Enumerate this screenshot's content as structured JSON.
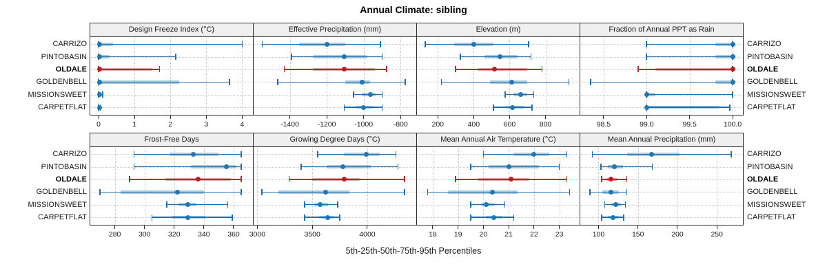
{
  "title": "Annual Climate: sibling",
  "caption": "5th-25th-50th-75th-95th Percentiles",
  "sites": [
    {
      "name": "CARRIZO",
      "highlight": false
    },
    {
      "name": "PINTOBASIN",
      "highlight": false
    },
    {
      "name": "OLDALE",
      "highlight": true
    },
    {
      "name": "GOLDENBELL",
      "highlight": false
    },
    {
      "name": "MISSIONSWEET",
      "highlight": false
    },
    {
      "name": "CARPETFLAT",
      "highlight": false
    }
  ],
  "colors": {
    "normal_dot": "#1F77B4",
    "normal_line": "#1C6FAE",
    "normal_band": "rgba(31,119,180,0.38)",
    "highlight_dot": "#B22222",
    "highlight_line": "#AE2F2F",
    "highlight_band": "rgba(178,34,34,0.38)",
    "grid": "#C9C9C9",
    "border": "#2E2E2E",
    "strip_bg": "#EFEFEF"
  },
  "chart_data": {
    "type": "scatter",
    "variant": "percentile-range-dotplot",
    "title": "Annual Climate: sibling",
    "xlabel": "5th-25th-50th-75th-95th Percentiles",
    "grid": "dotted at axis ticks and row centers",
    "legend": "none",
    "percentiles": [
      "5th",
      "25th",
      "50th",
      "75th",
      "95th"
    ],
    "sites": [
      "CARRIZO",
      "PINTOBASIN",
      "OLDALE",
      "GOLDENBELL",
      "MISSIONSWEET",
      "CARPETFLAT"
    ],
    "highlighted_site": "OLDALE",
    "panels": [
      {
        "title": "Design Freeze Index (°C)",
        "grid_row": 0,
        "grid_col": 0,
        "xlim": [
          -0.25,
          4.3
        ],
        "tick_values": [
          0,
          1,
          2,
          3,
          4
        ],
        "tick_labels": [
          "0",
          "1",
          "2",
          "3",
          "4"
        ],
        "values": [
          [
            0,
            0,
            0.02,
            0.4,
            4.0
          ],
          [
            0,
            0,
            0.02,
            0.3,
            2.15
          ],
          [
            0,
            0,
            0.02,
            1.5,
            1.7
          ],
          [
            0,
            0,
            0.02,
            2.25,
            3.65
          ],
          [
            0,
            0,
            0.03,
            0.06,
            0.11
          ],
          [
            0,
            0,
            0.02,
            0.03,
            0.05
          ]
        ]
      },
      {
        "title": "Effective Precipitation (mm)",
        "grid_row": 0,
        "grid_col": 1,
        "xlim": [
          -1600,
          -715
        ],
        "tick_values": [
          -1400,
          -1200,
          -1000,
          -800
        ],
        "tick_labels": [
          "-1400",
          "-1200",
          "-1000",
          "-800"
        ],
        "values": [
          [
            -1550,
            -1350,
            -1200,
            -1100,
            -910
          ],
          [
            -1390,
            -1270,
            -1105,
            -985,
            -900
          ],
          [
            -1430,
            -1275,
            -1105,
            -940,
            -875
          ],
          [
            -1465,
            -1100,
            -1010,
            -965,
            -775
          ],
          [
            -1055,
            -1010,
            -965,
            -935,
            -900
          ],
          [
            -1105,
            -1045,
            -1000,
            -945,
            -900
          ]
        ]
      },
      {
        "title": "Elevation (m)",
        "grid_row": 0,
        "grid_col": 2,
        "xlim": [
          80,
          990
        ],
        "tick_values": [
          200,
          400,
          600,
          800
        ],
        "tick_labels": [
          "200",
          "400",
          "600",
          "800"
        ],
        "values": [
          [
            130,
            290,
            400,
            510,
            705
          ],
          [
            325,
            460,
            545,
            645,
            720
          ],
          [
            300,
            420,
            515,
            700,
            780
          ],
          [
            220,
            490,
            610,
            700,
            930
          ],
          [
            575,
            620,
            660,
            700,
            735
          ],
          [
            510,
            580,
            615,
            680,
            725
          ]
        ]
      },
      {
        "title": "Fraction of Annual PPT as Rain",
        "grid_row": 0,
        "grid_col": 3,
        "xlim": [
          98.22,
          100.12
        ],
        "tick_values": [
          98.5,
          99.0,
          99.5,
          100.0
        ],
        "tick_labels": [
          "98.5",
          "99.0",
          "99.5",
          "100.0"
        ],
        "values": [
          [
            99.0,
            99.8,
            100.0,
            100.0,
            100.0
          ],
          [
            99.0,
            99.8,
            100.0,
            100.0,
            100.0
          ],
          [
            98.9,
            99.1,
            100.0,
            100.0,
            100.0
          ],
          [
            98.35,
            99.8,
            100.0,
            100.0,
            100.0
          ],
          [
            99.0,
            99.0,
            99.0,
            99.1,
            100.0
          ],
          [
            99.0,
            99.0,
            99.0,
            99.85,
            99.97
          ]
        ]
      },
      {
        "title": "Frost-Free Days",
        "grid_row": 1,
        "grid_col": 0,
        "xlim": [
          263,
          373
        ],
        "tick_values": [
          280,
          300,
          320,
          340,
          360
        ],
        "tick_labels": [
          "280",
          "300",
          "320",
          "340",
          "360"
        ],
        "values": [
          [
            293,
            317,
            333,
            350,
            365
          ],
          [
            293,
            331,
            355,
            362,
            365
          ],
          [
            290,
            314,
            336,
            358,
            365
          ],
          [
            270,
            284,
            322,
            340,
            365
          ],
          [
            315,
            323,
            329,
            335,
            356
          ],
          [
            305,
            318,
            329,
            341,
            359
          ]
        ]
      },
      {
        "title": "Growing Degree Days (°C)",
        "grid_row": 1,
        "grid_col": 1,
        "xlim": [
          2960,
          4445
        ],
        "tick_values": [
          3000,
          3500,
          4000
        ],
        "tick_labels": [
          "3000",
          "3500",
          "4000"
        ],
        "values": [
          [
            3550,
            3790,
            3990,
            4110,
            4260
          ],
          [
            3400,
            3630,
            3780,
            4030,
            4280
          ],
          [
            3290,
            3500,
            3790,
            3930,
            4340
          ],
          [
            3040,
            3190,
            3620,
            3840,
            4340
          ],
          [
            3430,
            3520,
            3570,
            3640,
            3730
          ],
          [
            3430,
            3560,
            3640,
            3700,
            3750
          ]
        ]
      },
      {
        "title": "Mean Annual Air Temperature (°C)",
        "grid_row": 1,
        "grid_col": 2,
        "xlim": [
          17.35,
          23.8
        ],
        "tick_values": [
          18,
          19,
          20,
          21,
          22,
          23
        ],
        "tick_labels": [
          "18",
          "19",
          "20",
          "21",
          "22",
          "23"
        ],
        "values": [
          [
            20.0,
            21.2,
            22.0,
            22.6,
            23.3
          ],
          [
            19.5,
            20.2,
            21.0,
            22.2,
            23.0
          ],
          [
            18.9,
            19.8,
            21.1,
            21.8,
            23.3
          ],
          [
            17.8,
            18.6,
            20.35,
            21.35,
            23.4
          ],
          [
            19.5,
            19.9,
            20.1,
            20.45,
            20.85
          ],
          [
            19.5,
            20.1,
            20.4,
            20.75,
            21.2
          ]
        ]
      },
      {
        "title": "Mean Annual Precipitation (mm)",
        "grid_row": 1,
        "grid_col": 3,
        "xlim": [
          76,
          283
        ],
        "tick_values": [
          100,
          150,
          200,
          250
        ],
        "tick_labels": [
          "100",
          "150",
          "200",
          "250"
        ],
        "values": [
          [
            92,
            136,
            167,
            203,
            268
          ],
          [
            103,
            112,
            120,
            131,
            168
          ],
          [
            104,
            110,
            116,
            124,
            136
          ],
          [
            89,
            105,
            116,
            126,
            136
          ],
          [
            108,
            116,
            122,
            128,
            134
          ],
          [
            104,
            112,
            118,
            126,
            132
          ]
        ]
      }
    ]
  }
}
